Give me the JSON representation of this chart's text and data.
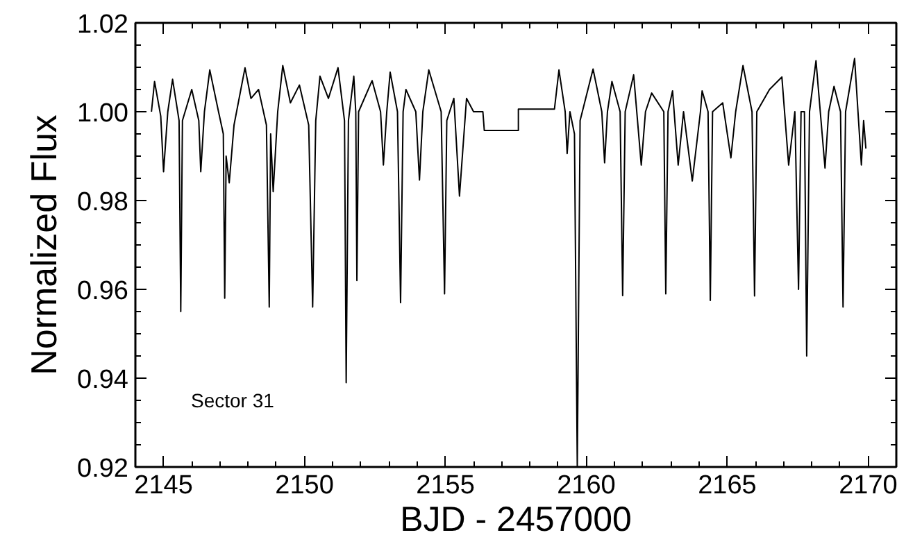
{
  "chart_data": {
    "type": "line",
    "xlabel": "BJD - 2457000",
    "ylabel": "Normalized Flux",
    "xlim": [
      2144,
      2171
    ],
    "ylim": [
      0.92,
      1.02
    ],
    "xticks": [
      2145,
      2150,
      2155,
      2160,
      2165,
      2170
    ],
    "yticks": [
      0.92,
      0.94,
      0.96,
      0.98,
      {
        "value": 1,
        "label": "1.00"
      },
      1.02
    ],
    "annotations": [
      "Sector 31"
    ],
    "grid": false,
    "marker": "none",
    "line_style": "solid",
    "series": [
      {
        "color": "#000000",
        "x": [
          2144.57,
          2144.68,
          2144.9,
          2145.0,
          2145.15,
          2145.32,
          2145.55,
          2145.61,
          2145.67,
          2146.0,
          2146.25,
          2146.32,
          2146.45,
          2146.64,
          2146.95,
          2147.12,
          2147.17,
          2147.22,
          2147.33,
          2147.5,
          2147.89,
          2148.1,
          2148.37,
          2148.65,
          2148.75,
          2148.8,
          2148.89,
          2149.05,
          2149.23,
          2149.5,
          2149.82,
          2150.15,
          2150.29,
          2150.4,
          2150.55,
          2150.85,
          2151.19,
          2151.42,
          2151.48,
          2151.56,
          2151.75,
          2151.82,
          2151.86,
          2151.92,
          2152.4,
          2152.7,
          2152.8,
          2152.92,
          2153.04,
          2153.3,
          2153.41,
          2153.5,
          2153.6,
          2153.95,
          2154.08,
          2154.2,
          2154.41,
          2154.85,
          2154.97,
          2155.05,
          2155.3,
          2155.5,
          2155.75,
          2156.0,
          2156.33,
          2156.38,
          2157.59,
          2157.59,
          2158.87,
          2159.03,
          2159.25,
          2159.32,
          2159.42,
          2159.58,
          2159.68,
          2159.78,
          2160.24,
          2160.55,
          2160.65,
          2160.75,
          2160.91,
          2161.2,
          2161.29,
          2161.38,
          2161.68,
          2161.95,
          2162.1,
          2162.32,
          2162.75,
          2162.82,
          2162.9,
          2163.06,
          2163.26,
          2163.45,
          2163.76,
          2164.05,
          2164.11,
          2164.32,
          2164.4,
          2164.48,
          2164.84,
          2165.13,
          2165.3,
          2165.56,
          2165.88,
          2165.97,
          2166.05,
          2166.5,
          2166.94,
          2167.18,
          2167.4,
          2167.53,
          2167.62,
          2167.74,
          2167.82,
          2167.92,
          2168.15,
          2168.47,
          2168.6,
          2168.79,
          2169.02,
          2169.11,
          2169.2,
          2169.52,
          2169.76,
          2169.84,
          2169.92
        ],
        "values": [
          1.0,
          1.0068,
          0.999,
          0.9865,
          1.0,
          1.0073,
          0.998,
          0.955,
          0.998,
          1.005,
          0.998,
          0.9865,
          1.0,
          1.0094,
          1.0,
          0.995,
          0.958,
          0.99,
          0.984,
          0.997,
          1.0099,
          1.003,
          1.005,
          0.997,
          0.956,
          0.995,
          0.982,
          1.0,
          1.0104,
          1.002,
          1.006,
          0.997,
          0.956,
          0.998,
          1.008,
          1.003,
          1.0099,
          0.998,
          0.939,
          0.998,
          1.008,
          1.0,
          0.962,
          1.0,
          1.007,
          1.0,
          0.988,
          1.0,
          1.0089,
          1.0,
          0.957,
          1.0,
          1.005,
          1.0,
          0.9846,
          1.0,
          1.0094,
          1.0,
          0.959,
          0.998,
          1.003,
          0.981,
          1.003,
          1.0,
          1.0,
          0.9958,
          0.9958,
          1.0006,
          1.0006,
          1.0094,
          1.0,
          0.9906,
          1.0,
          0.995,
          0.92,
          0.998,
          1.0096,
          1.0,
          0.9885,
          1.0,
          1.0068,
          1.0,
          0.9586,
          1.0,
          1.0083,
          0.988,
          1.0,
          1.0042,
          1.0,
          0.959,
          1.0,
          1.0047,
          0.988,
          1.0,
          0.9844,
          1.0,
          1.0047,
          1.0,
          0.9575,
          1.0,
          1.002,
          0.9896,
          1.0,
          1.0104,
          1.0,
          0.9585,
          1.0,
          1.005,
          1.0078,
          0.988,
          1.0,
          0.96,
          1.0,
          1.0,
          0.945,
          1.0,
          1.0115,
          0.9873,
          1.0,
          1.0057,
          1.0,
          0.956,
          1.0,
          1.012,
          0.988,
          0.998,
          0.9917
        ]
      }
    ]
  }
}
